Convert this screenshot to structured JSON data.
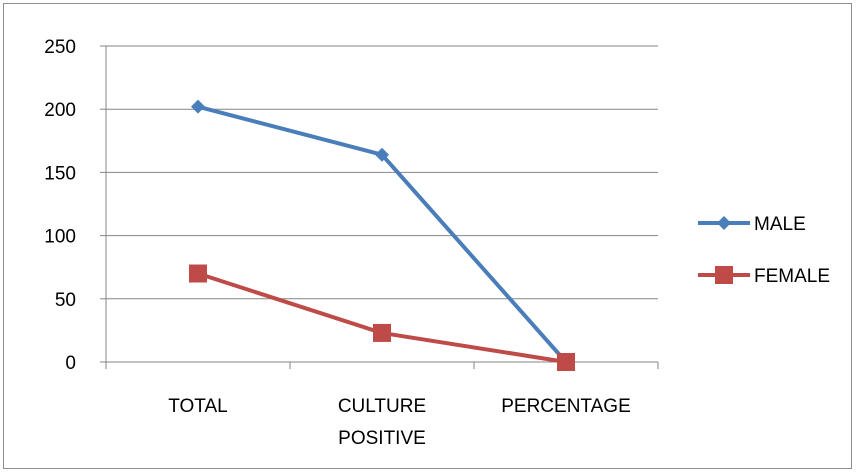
{
  "chart_data": {
    "type": "line",
    "categories": [
      "TOTAL",
      "CULTURE POSITIVE",
      "PERCENTAGE"
    ],
    "category_lines": [
      [
        "TOTAL"
      ],
      [
        "CULTURE",
        "POSITIVE"
      ],
      [
        "PERCENTAGE"
      ]
    ],
    "series": [
      {
        "name": "MALE",
        "values": [
          202,
          164,
          0
        ],
        "color": "#4a7ebb",
        "marker": "diamond"
      },
      {
        "name": "FEMALE",
        "values": [
          70,
          23,
          0
        ],
        "color": "#be4b48",
        "marker": "square"
      }
    ],
    "ylim": [
      0,
      250
    ],
    "yticks": [
      0,
      50,
      100,
      150,
      200,
      250
    ],
    "grid": true,
    "legend_position": "right",
    "title": "",
    "xlabel": "",
    "ylabel": ""
  }
}
